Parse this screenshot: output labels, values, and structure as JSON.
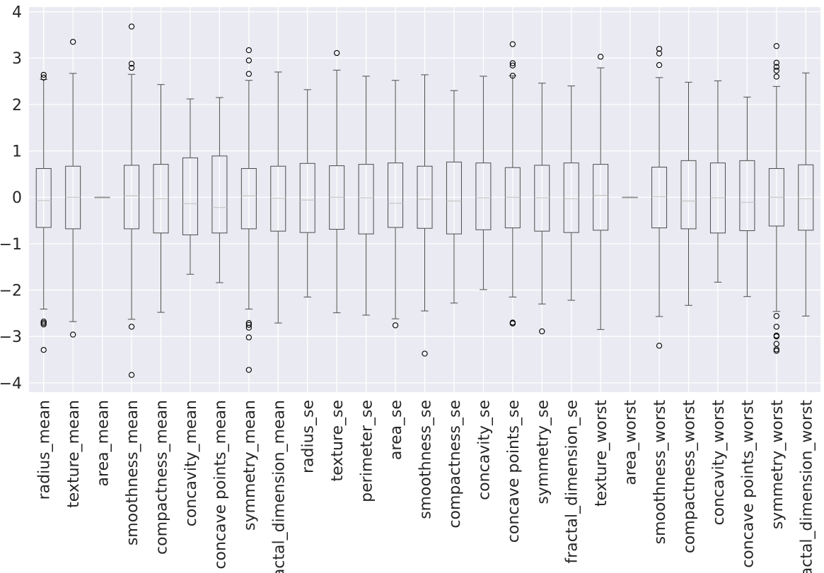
{
  "chart_data": {
    "type": "box",
    "title": "",
    "xlabel": "",
    "ylabel": "",
    "ylim": [
      -4.2,
      4.1
    ],
    "yticks": [
      -4,
      -3,
      -2,
      -1,
      0,
      1,
      2,
      3,
      4
    ],
    "grid": true,
    "legend": "none",
    "colors": {
      "background": "#eaeaf2",
      "grid": "#ffffff",
      "box": "#4d4d4d",
      "median": "#c8c8c8",
      "text": "#262626"
    },
    "categories": [
      "radius_mean",
      "texture_mean",
      "area_mean",
      "smoothness_mean",
      "compactness_mean",
      "concavity_mean",
      "concave points_mean",
      "symmetry_mean",
      "fractal_dimension_mean",
      "radius_se",
      "texture_se",
      "perimeter_se",
      "area_se",
      "smoothness_se",
      "compactness_se",
      "concavity_se",
      "concave points_se",
      "symmetry_se",
      "fractal_dimension_se",
      "texture_worst",
      "area_worst",
      "smoothness_worst",
      "compactness_worst",
      "concavity_worst",
      "concave points_worst",
      "symmetry_worst",
      "fractal_dimension_worst"
    ],
    "boxes": [
      {
        "q1": -0.65,
        "median": -0.07,
        "q3": 0.62,
        "whisker_low": -2.41,
        "whisker_high": 2.54,
        "outliers": [
          2.64,
          2.58,
          -2.68,
          -2.71,
          -2.74,
          -3.29
        ]
      },
      {
        "q1": -0.68,
        "median": 0.0,
        "q3": 0.67,
        "whisker_low": -2.68,
        "whisker_high": 2.67,
        "outliers": [
          3.35,
          -2.96
        ]
      },
      {
        "q1": 0.0,
        "median": 0.0,
        "q3": 0.0,
        "whisker_low": 0.0,
        "whisker_high": 0.0,
        "outliers": []
      },
      {
        "q1": -0.68,
        "median": 0.03,
        "q3": 0.69,
        "whisker_low": -2.63,
        "whisker_high": 2.65,
        "outliers": [
          3.68,
          2.88,
          2.79,
          -2.79,
          -3.83
        ]
      },
      {
        "q1": -0.77,
        "median": -0.03,
        "q3": 0.71,
        "whisker_low": -2.48,
        "whisker_high": 2.43,
        "outliers": []
      },
      {
        "q1": -0.81,
        "median": -0.14,
        "q3": 0.85,
        "whisker_low": -1.66,
        "whisker_high": 2.12,
        "outliers": []
      },
      {
        "q1": -0.77,
        "median": -0.22,
        "q3": 0.89,
        "whisker_low": -1.84,
        "whisker_high": 2.15,
        "outliers": []
      },
      {
        "q1": -0.68,
        "median": 0.03,
        "q3": 0.62,
        "whisker_low": -2.41,
        "whisker_high": 2.52,
        "outliers": [
          3.17,
          2.95,
          2.66,
          -2.71,
          -2.75,
          -2.81,
          -3.02,
          -3.72
        ]
      },
      {
        "q1": -0.73,
        "median": -0.02,
        "q3": 0.67,
        "whisker_low": -2.71,
        "whisker_high": 2.7,
        "outliers": []
      },
      {
        "q1": -0.76,
        "median": -0.06,
        "q3": 0.73,
        "whisker_low": -2.15,
        "whisker_high": 2.32,
        "outliers": []
      },
      {
        "q1": -0.69,
        "median": 0.0,
        "q3": 0.68,
        "whisker_low": -2.49,
        "whisker_high": 2.74,
        "outliers": [
          3.11
        ]
      },
      {
        "q1": -0.79,
        "median": -0.01,
        "q3": 0.71,
        "whisker_low": -2.54,
        "whisker_high": 2.61,
        "outliers": []
      },
      {
        "q1": -0.65,
        "median": -0.13,
        "q3": 0.74,
        "whisker_low": -2.62,
        "whisker_high": 2.52,
        "outliers": [
          -2.76
        ]
      },
      {
        "q1": -0.67,
        "median": -0.04,
        "q3": 0.67,
        "whisker_low": -2.45,
        "whisker_high": 2.64,
        "outliers": [
          -3.37
        ]
      },
      {
        "q1": -0.79,
        "median": -0.08,
        "q3": 0.76,
        "whisker_low": -2.28,
        "whisker_high": 2.3,
        "outliers": []
      },
      {
        "q1": -0.7,
        "median": -0.01,
        "q3": 0.74,
        "whisker_low": -1.99,
        "whisker_high": 2.61,
        "outliers": []
      },
      {
        "q1": -0.66,
        "median": 0.0,
        "q3": 0.64,
        "whisker_low": -2.15,
        "whisker_high": 2.62,
        "outliers": [
          3.3,
          2.89,
          2.84,
          2.62,
          -2.7,
          -2.72
        ]
      },
      {
        "q1": -0.73,
        "median": -0.01,
        "q3": 0.69,
        "whisker_low": -2.3,
        "whisker_high": 2.46,
        "outliers": [
          -2.89
        ]
      },
      {
        "q1": -0.76,
        "median": -0.03,
        "q3": 0.74,
        "whisker_low": -2.22,
        "whisker_high": 2.4,
        "outliers": []
      },
      {
        "q1": -0.71,
        "median": 0.04,
        "q3": 0.71,
        "whisker_low": -2.85,
        "whisker_high": 2.79,
        "outliers": [
          3.03
        ]
      },
      {
        "q1": 0.0,
        "median": 0.0,
        "q3": 0.0,
        "whisker_low": 0.0,
        "whisker_high": 0.0,
        "outliers": []
      },
      {
        "q1": -0.66,
        "median": 0.01,
        "q3": 0.65,
        "whisker_low": -2.57,
        "whisker_high": 2.58,
        "outliers": [
          3.2,
          3.1,
          2.85,
          -3.2
        ]
      },
      {
        "q1": -0.68,
        "median": -0.08,
        "q3": 0.79,
        "whisker_low": -2.33,
        "whisker_high": 2.48,
        "outliers": []
      },
      {
        "q1": -0.77,
        "median": -0.01,
        "q3": 0.74,
        "whisker_low": -1.83,
        "whisker_high": 2.51,
        "outliers": []
      },
      {
        "q1": -0.72,
        "median": -0.11,
        "q3": 0.79,
        "whisker_low": -2.14,
        "whisker_high": 2.16,
        "outliers": []
      },
      {
        "q1": -0.62,
        "median": 0.0,
        "q3": 0.62,
        "whisker_low": -2.46,
        "whisker_high": 2.39,
        "outliers": [
          3.26,
          2.9,
          2.81,
          2.73,
          2.6,
          -2.56,
          -2.79,
          -2.98,
          -3.0,
          -3.16,
          -3.28,
          -3.31
        ]
      },
      {
        "q1": -0.71,
        "median": -0.03,
        "q3": 0.7,
        "whisker_low": -2.56,
        "whisker_high": 2.68,
        "outliers": []
      }
    ]
  }
}
